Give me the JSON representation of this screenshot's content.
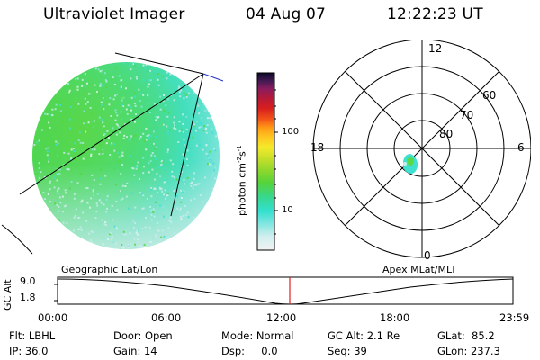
{
  "header": {
    "title": "Ultraviolet Imager",
    "date": "04 Aug 07",
    "time": "12:22:23 UT"
  },
  "colorbar": {
    "label_main": "photon cm",
    "label_exp1": "-2",
    "label_mid": "s",
    "label_exp2": "-1",
    "ticks": [
      "100",
      "10"
    ]
  },
  "polar_plot": {
    "labels": {
      "top": "12",
      "bottom": "0",
      "left": "18",
      "right": "6",
      "lat60": "60",
      "lat70": "70",
      "lat80": "80"
    }
  },
  "altitude_plot": {
    "ylabel": "GC Alt",
    "yticks": [
      "9.0",
      "1.8"
    ],
    "left_label": "Geographic Lat/Lon",
    "right_label": "Apex MLat/MLT",
    "xticks": [
      "00:00",
      "06:00",
      "12:00",
      "18:00",
      "23:59"
    ]
  },
  "info": {
    "row1": {
      "filter": "Flt: LBHL",
      "door": "Door: Open",
      "mode": "Mode: Normal",
      "gcalt": "GC Alt: 2.1 Re",
      "glat": "GLat:  85.2"
    },
    "row2": {
      "ip": "IP: 36.0",
      "gain": "Gain: 14",
      "dsp": "Dsp:     0.0",
      "seq": "Seq: 39",
      "glon": "GLon: 237.3"
    }
  },
  "colors": {
    "disk_cyan": "#3de0d8",
    "disk_green": "#55d63a",
    "disk_pale": "#c9ecec",
    "marker_red": "#e0201a",
    "line_blue": "#2233cc"
  }
}
